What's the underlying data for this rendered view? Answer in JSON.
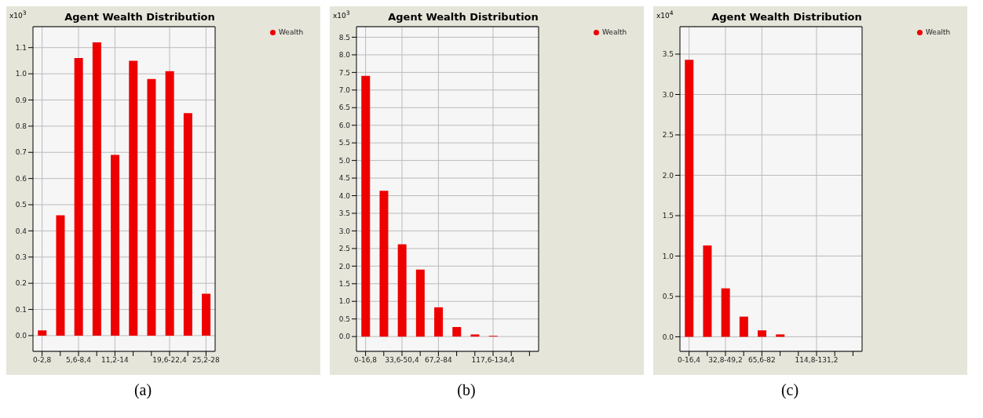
{
  "chart_data": [
    {
      "type": "bar",
      "title": "Agent Wealth Distribution",
      "ylabel": "x10$^{3}$",
      "categories": [
        "0-2,8",
        null,
        "5,6-8,4",
        null,
        "11,2-14",
        null,
        null,
        "19,6-22,4",
        null,
        "25,2-28"
      ],
      "series": [
        {
          "name": "Wealth",
          "color": "#ee0000",
          "values": [
            0.02,
            0.46,
            1.06,
            1.12,
            0.69,
            1.05,
            0.98,
            1.01,
            0.85,
            0.16
          ]
        }
      ],
      "ylim": [
        -0.06,
        1.18
      ],
      "yticks": [
        {
          "value": 0,
          "label": "0.0"
        },
        0.1,
        0.2,
        0.3,
        0.4,
        0.5,
        0.6,
        0.7,
        0.8,
        0.9,
        {
          "value": 1,
          "label": "1.0"
        },
        1.1
      ],
      "grid": true,
      "legend": "top right",
      "annotations": [
        "(a)"
      ]
    },
    {
      "type": "bar",
      "title": "Agent Wealth Distribution",
      "ylabel": "x10$^{3}$",
      "categories": [
        "0-16,8",
        null,
        "33,6-50,4",
        null,
        "67,2-84",
        null,
        null,
        "117,6-134,4",
        null,
        null
      ],
      "series": [
        {
          "name": "Wealth",
          "color": "#ee0000",
          "values": [
            7.4,
            4.14,
            2.62,
            1.9,
            0.83,
            0.27,
            0.06,
            0.02,
            0,
            0
          ]
        }
      ],
      "ylim": [
        -0.42,
        8.8
      ],
      "yticks": [
        {
          "value": 0,
          "label": "0.0"
        },
        0.5,
        {
          "value": 1,
          "label": "1.0"
        },
        1.5,
        {
          "value": 2,
          "label": "2.0"
        },
        2.5,
        {
          "value": 3,
          "label": "3.0"
        },
        3.5,
        {
          "value": 4,
          "label": "4.0"
        },
        4.5,
        {
          "value": 5,
          "label": "5.0"
        },
        5.5,
        {
          "value": 6,
          "label": "6.0"
        },
        6.5,
        {
          "value": 7,
          "label": "7.0"
        },
        7.5,
        {
          "value": 8,
          "label": "8.0"
        },
        8.5
      ],
      "grid": true,
      "legend": "top right",
      "annotations": [
        "(b)"
      ]
    },
    {
      "type": "bar",
      "title": "Agent Wealth Distribution",
      "ylabel": "x10$^{4}$",
      "categories": [
        "0-16,4",
        null,
        "32,8-49,2",
        null,
        "65,6-82",
        null,
        null,
        "114,8-131,2",
        null,
        null
      ],
      "series": [
        {
          "name": "Wealth",
          "color": "#ee0000",
          "values": [
            3.43,
            1.13,
            0.6,
            0.25,
            0.08,
            0.03,
            0,
            0,
            0,
            0
          ]
        }
      ],
      "ylim": [
        -0.18,
        3.84
      ],
      "yticks": [
        {
          "value": 0,
          "label": "0.0"
        },
        0.5,
        {
          "value": 1,
          "label": "1.0"
        },
        1.5,
        {
          "value": 2,
          "label": "2.0"
        },
        2.5,
        {
          "value": 3,
          "label": "3.0"
        },
        3.5
      ],
      "grid": true,
      "legend": "top right",
      "annotations": [
        "(c)"
      ]
    }
  ]
}
